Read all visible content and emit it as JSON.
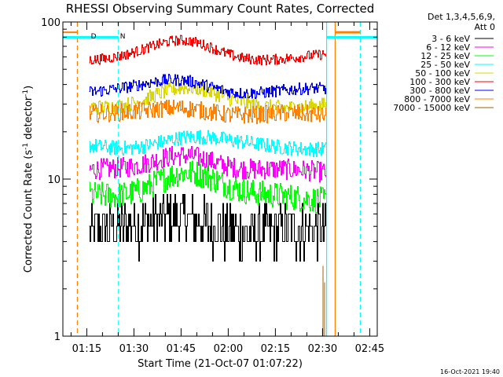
{
  "chart_data": {
    "type": "line",
    "title": "RHESSI Observing Summary Count Rates, Corrected",
    "xlabel": "Start Time (21-Oct-07 01:07:22)",
    "ylabel_parts": [
      "Corrected Count Rate (s",
      "-1",
      " detector",
      "-1",
      ")"
    ],
    "yscale": "log",
    "ylim": [
      1,
      100
    ],
    "y_tick_labels": [
      "1",
      "10",
      "100"
    ],
    "xlim_min": [
      67.4,
      167.4
    ],
    "x_ticks_min": [
      75,
      90,
      105,
      120,
      135,
      150,
      165
    ],
    "x_tick_labels": [
      "01:15",
      "01:30",
      "01:45",
      "02:00",
      "02:15",
      "02:30",
      "02:45"
    ],
    "legend_header": [
      "Det 1,3,4,5,6,9,",
      "Att 0"
    ],
    "series": [
      {
        "name": "3 - 6 keV",
        "color": "#000000",
        "start": 75.8,
        "end": 151.2,
        "base": 4.6,
        "bump": 1.25,
        "noise": 0.18,
        "quant": 1
      },
      {
        "name": "6 - 12 keV",
        "color": "#ff00ff",
        "start": 75.8,
        "end": 151.2,
        "base": 11.0,
        "bump": 1.35,
        "noise": 0.07,
        "quant": 0
      },
      {
        "name": "12 - 25 keV",
        "color": "#00ff00",
        "start": 75.8,
        "end": 151.2,
        "base": 7.6,
        "bump": 1.5,
        "noise": 0.09,
        "quant": 0
      },
      {
        "name": "25 - 50 keV",
        "color": "#00ffff",
        "start": 75.8,
        "end": 151.2,
        "base": 16.3,
        "bump": 1.12,
        "noise": 0.05,
        "quant": 0
      },
      {
        "name": "50 - 100 keV",
        "color": "#d8d800",
        "start": 75.8,
        "end": 151.2,
        "base": 30.0,
        "bump": 1.22,
        "noise": 0.05,
        "quant": 0
      },
      {
        "name": "100 - 300 keV",
        "color": "#ff0000",
        "start": 75.8,
        "end": 151.2,
        "base": 60.0,
        "bump": 1.22,
        "noise": 0.035,
        "quant": 0
      },
      {
        "name": "300 - 800 keV",
        "color": "#0000ff",
        "start": 75.8,
        "end": 151.2,
        "base": 36.0,
        "bump": 1.18,
        "noise": 0.04,
        "quant": 0
      },
      {
        "name": "800 - 7000 keV",
        "color": "#ff8000",
        "start": 75.8,
        "end": 151.2,
        "base": 25.0,
        "bump": 1.18,
        "noise": 0.06,
        "quant": 0
      },
      {
        "name": "7000 - 15000 keV",
        "color": "#a06000",
        "start": 150.2,
        "end": 150.6,
        "base": 1.05,
        "bump": 1.0,
        "noise": 0.0,
        "quant": 0
      }
    ],
    "flag_markers": [
      {
        "label": "D",
        "time_min": 75.8,
        "color": "#ff8000"
      },
      {
        "label": "N",
        "time_min": 85.1,
        "color": "#00ffff"
      }
    ],
    "vertical_lines": [
      {
        "time_min": 72.0,
        "color": "#ff8000",
        "style": "dashed"
      },
      {
        "time_min": 85.1,
        "color": "#00ffff",
        "style": "dashed"
      },
      {
        "time_min": 162.0,
        "color": "#00ffff",
        "style": "dashed"
      },
      {
        "time_min": 151.3,
        "color": "#00ffff",
        "style": "solid"
      },
      {
        "time_min": 154.0,
        "color": "#ff8000",
        "style": "solid"
      }
    ],
    "grid": false
  },
  "footer": {
    "timestamp": "16-Oct-2021 19:40"
  }
}
